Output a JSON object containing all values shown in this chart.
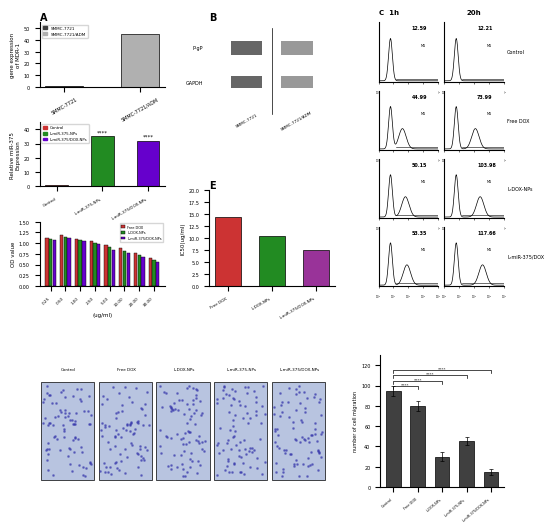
{
  "panel_A_top": {
    "categories": [
      "SMMC-7721",
      "SMMC-7721/ADM"
    ],
    "values": [
      1.0,
      45.0
    ],
    "colors": [
      "#404040",
      "#b0b0b0"
    ],
    "ylabel": "gene expression\nof MDR-1",
    "title": "A"
  },
  "panel_A_mid": {
    "categories": [
      "Control",
      "L-miR-375-NPs",
      "L-miR-375/DOX-NPs"
    ],
    "values": [
      1.0,
      35.0,
      32.0
    ],
    "colors": [
      "#cc3333",
      "#228B22",
      "#6600cc"
    ],
    "ylabel": "Relative miR-375\nExpression",
    "legend": [
      "Control",
      "L-miR-375-NPs",
      "L-miR-375/DOX-NPs"
    ]
  },
  "panel_D_bar": {
    "x_labels": [
      "0.25",
      "0.50",
      "1.00",
      "2.50",
      "5.00",
      "10.00",
      "20.00",
      "30.00"
    ],
    "series": {
      "Free DOX": [
        1.12,
        1.18,
        1.1,
        1.05,
        0.95,
        0.88,
        0.78,
        0.65
      ],
      "L-DOX-NPs": [
        1.1,
        1.15,
        1.08,
        1.0,
        0.9,
        0.82,
        0.72,
        0.6
      ],
      "L-miR-375/DOX-NPs": [
        1.08,
        1.13,
        1.05,
        0.98,
        0.85,
        0.78,
        0.68,
        0.55
      ]
    },
    "colors": [
      "#cc3333",
      "#228B22",
      "#6600cc"
    ],
    "ylabel": "OD value",
    "xlabel": "(ug/ml)",
    "ylim": [
      0.0,
      1.5
    ]
  },
  "panel_E_bar": {
    "categories": [
      "Free DOX",
      "L-DOX-NPs",
      "L-miR-375/DOX-NPs"
    ],
    "values": [
      14.5,
      10.5,
      7.5
    ],
    "colors": [
      "#cc3333",
      "#228B22",
      "#993399"
    ],
    "ylabel": "IC50(ug/ml)",
    "ylim": [
      0,
      20
    ]
  },
  "panel_C_data": {
    "labels_1h": [
      "12.59",
      "44.99",
      "50.15",
      "53.35"
    ],
    "labels_20h": [
      "12.21",
      "73.99",
      "103.98",
      "117.66"
    ],
    "row_labels": [
      "Control",
      "Free DOX",
      "L-DOX-NPs",
      "L-miR-375/DOX"
    ]
  },
  "panel_F_bar": {
    "categories": [
      "Control",
      "Free DOX",
      "L-DOX-NPs",
      "L-miR-375-NPs",
      "L-miR-375/DOX-NPs"
    ],
    "values": [
      95,
      80,
      30,
      45,
      15
    ],
    "color": "#404040",
    "ylabel": "number of cell migration",
    "significance": [
      "****",
      "****",
      "****",
      "****"
    ]
  },
  "background_color": "#ffffff"
}
